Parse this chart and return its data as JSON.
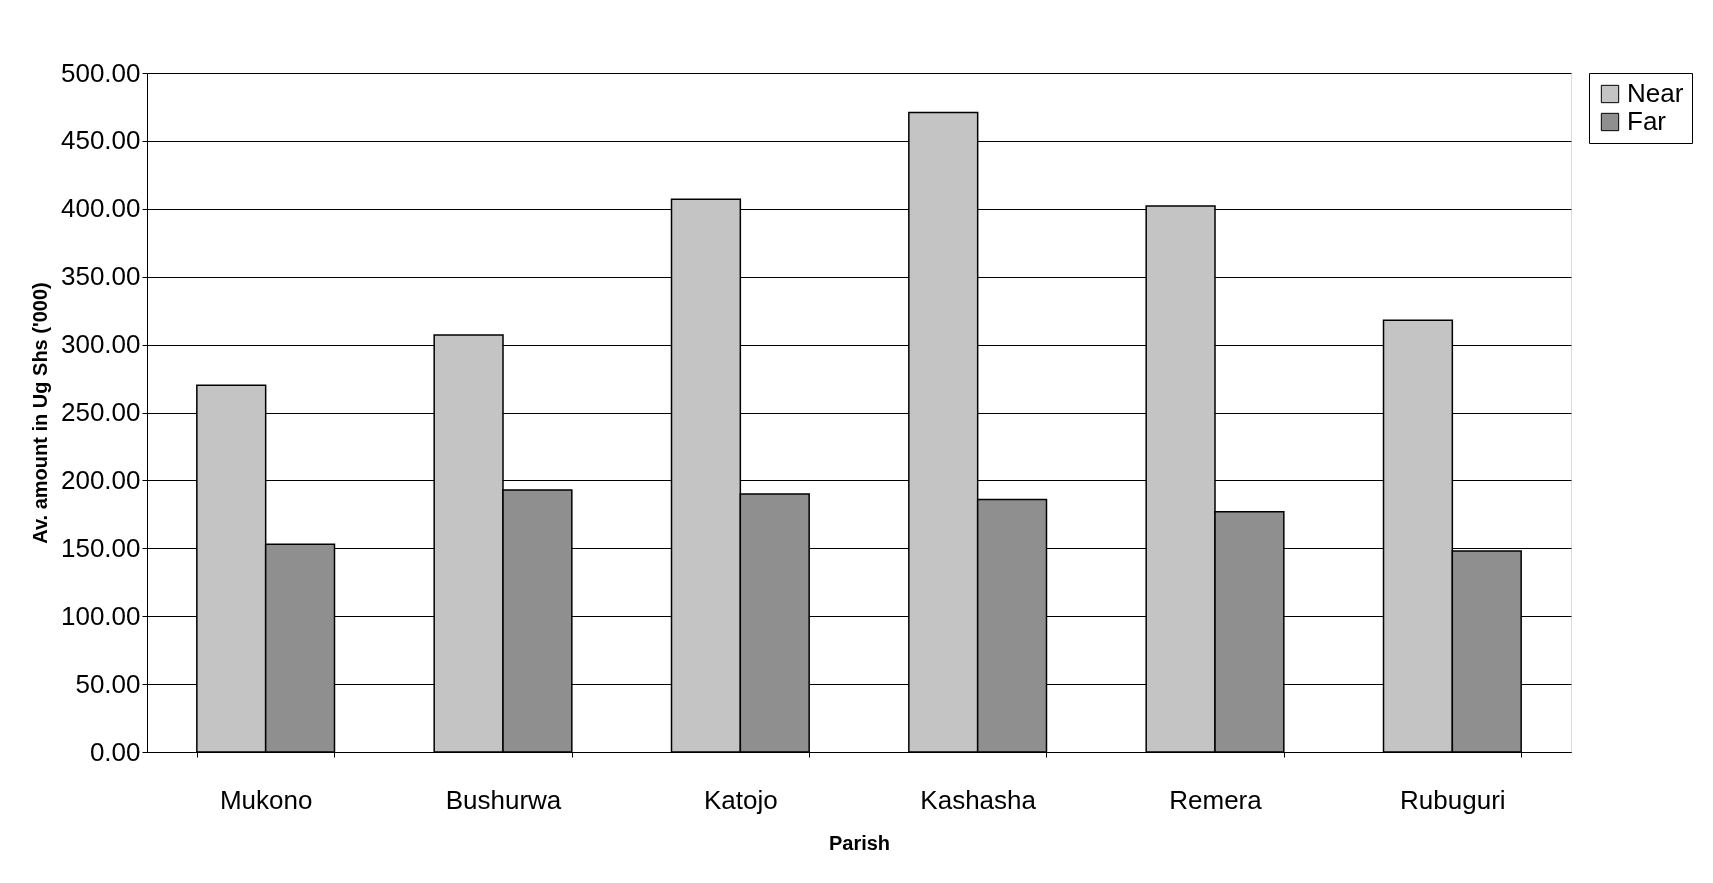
{
  "chart_data": {
    "type": "bar",
    "xlabel": "Parish",
    "ylabel": "Av. amount in Ug Shs ('000)",
    "categories": [
      "Mukono",
      "Bushurwa",
      "Katojo",
      "Kashasha",
      "Remera",
      "Rubuguri"
    ],
    "series": [
      {
        "name": "Near",
        "color": "#c4c4c4",
        "values": [
          270,
          307,
          407,
          471,
          402,
          318
        ]
      },
      {
        "name": "Far",
        "color": "#8f8f8f",
        "values": [
          153,
          193,
          190,
          186,
          177,
          148
        ]
      }
    ],
    "ylim": [
      0,
      500
    ],
    "yticks": [
      {
        "value": 0,
        "label": "0.00"
      },
      {
        "value": 50,
        "label": "50.00"
      },
      {
        "value": 100,
        "label": "100.00"
      },
      {
        "value": 150,
        "label": "150.00"
      },
      {
        "value": 200,
        "label": "200.00"
      },
      {
        "value": 250,
        "label": "250.00"
      },
      {
        "value": 300,
        "label": "300.00"
      },
      {
        "value": 350,
        "label": "350.00"
      },
      {
        "value": 400,
        "label": "400.00"
      },
      {
        "value": 450,
        "label": "450.00"
      },
      {
        "value": 500,
        "label": "500.00"
      }
    ],
    "grid": "y",
    "legend": "right"
  }
}
